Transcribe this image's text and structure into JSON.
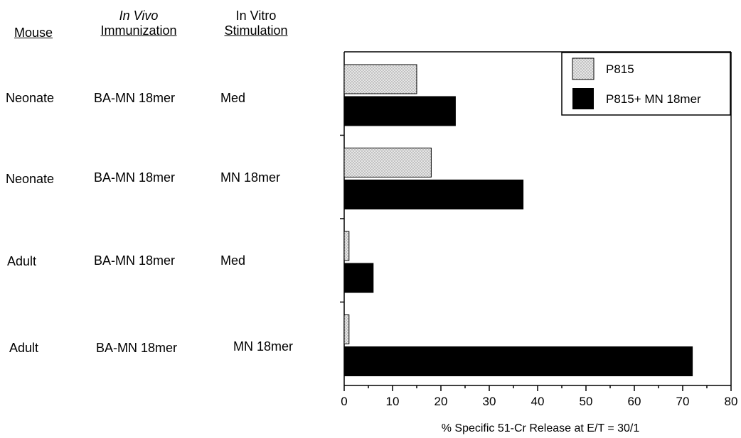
{
  "table": {
    "headers": {
      "mouse": "Mouse",
      "in_vivo_line1": "In Vivo",
      "in_vivo_line2": "Immunization",
      "in_vitro_line1": "In Vitro",
      "in_vitro_line2": "Stimulation"
    },
    "rows": [
      {
        "mouse": "Neonate",
        "immunization": "BA-MN 18mer",
        "stimulation": "Med"
      },
      {
        "mouse": "Neonate",
        "immunization": "BA-MN 18mer",
        "stimulation": "MN 18mer"
      },
      {
        "mouse": "Adult",
        "immunization": "BA-MN 18mer",
        "stimulation": "Med"
      },
      {
        "mouse": "Adult",
        "immunization": "BA-MN 18mer",
        "stimulation": "MN 18mer"
      }
    ]
  },
  "chart_data": {
    "type": "bar",
    "orientation": "horizontal",
    "categories": [
      "Neonate BA-MN 18mer Med",
      "Neonate BA-MN 18mer MN 18mer",
      "Adult BA-MN 18mer Med",
      "Adult BA-MN 18mer MN 18mer"
    ],
    "series": [
      {
        "name": "P815",
        "values": [
          15,
          18,
          1,
          1
        ],
        "color": "#d9d9d9",
        "pattern": "stippled"
      },
      {
        "name": "P815+ MN 18mer",
        "values": [
          23,
          37,
          6,
          72
        ],
        "color": "#000000"
      }
    ],
    "xlabel": "% Specific 51-Cr Release at E/T = 30/1",
    "ylabel": "",
    "title": "",
    "xlim": [
      0,
      80
    ],
    "xticks": [
      "0",
      "10",
      "20",
      "30",
      "40",
      "50",
      "60",
      "70",
      "80"
    ],
    "legend_position": "top-right",
    "grid": false
  }
}
